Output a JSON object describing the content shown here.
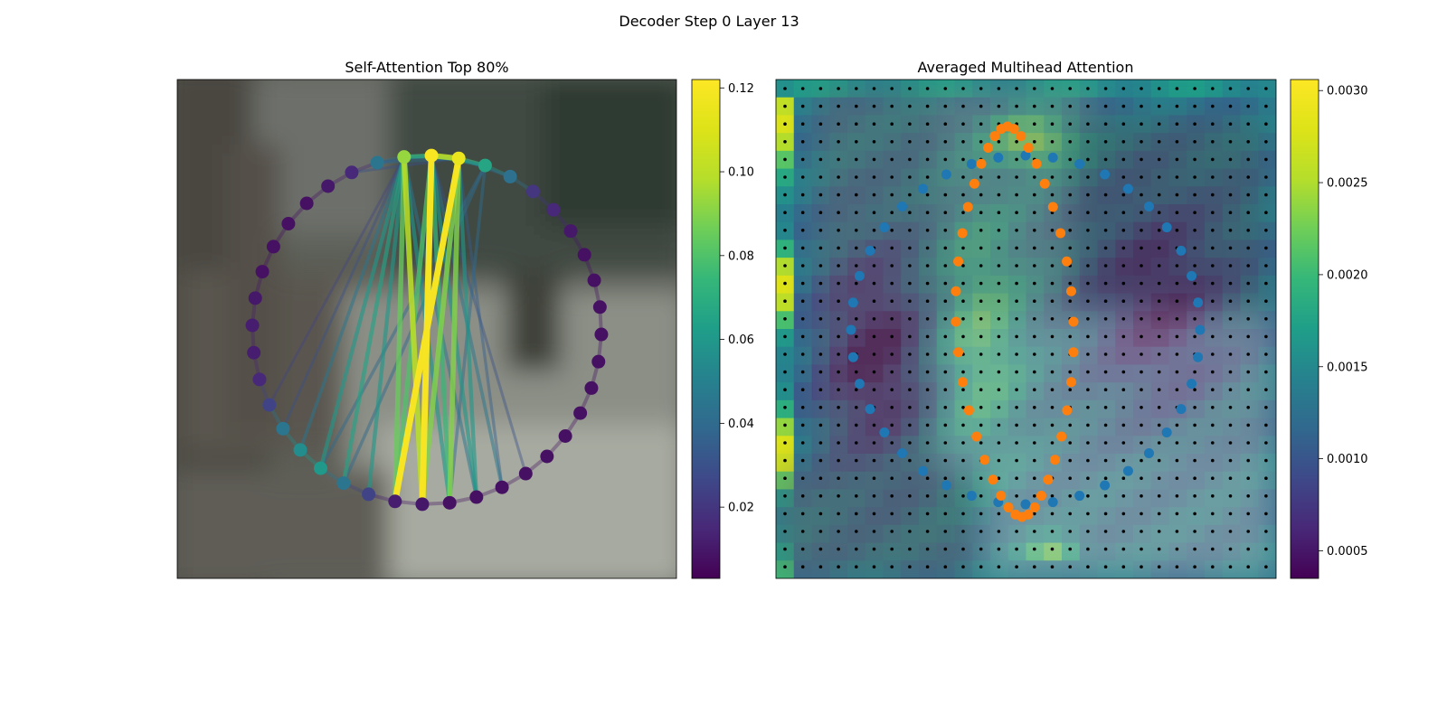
{
  "figure": {
    "suptitle": "Decoder Step 0 Layer 13"
  },
  "chart_data": [
    {
      "type": "network",
      "title": "Self-Attention Top 80%",
      "colormap": "viridis",
      "colorbar": {
        "range": [
          0.003,
          0.122
        ],
        "ticks": [
          0.02,
          0.04,
          0.06,
          0.08,
          0.1,
          0.12
        ],
        "tick_labels": [
          "0.02",
          "0.04",
          "0.06",
          "0.08",
          "0.10",
          "0.12"
        ]
      },
      "node_count": 40,
      "node_values": [
        0.066,
        0.043,
        0.02,
        0.015,
        0.01,
        0.008,
        0.008,
        0.008,
        0.008,
        0.008,
        0.008,
        0.008,
        0.008,
        0.008,
        0.008,
        0.008,
        0.008,
        0.008,
        0.01,
        0.012,
        0.025,
        0.045,
        0.06,
        0.055,
        0.045,
        0.025,
        0.015,
        0.012,
        0.012,
        0.01,
        0.008,
        0.008,
        0.008,
        0.008,
        0.01,
        0.015,
        0.045,
        0.093,
        0.12,
        0.115
      ],
      "edge_sources": [
        0,
        37,
        38,
        39
      ],
      "edges": [
        {
          "from": 38,
          "to": 18,
          "w": 0.12
        },
        {
          "from": 37,
          "to": 18,
          "w": 0.1
        },
        {
          "from": 39,
          "to": 18,
          "w": 0.09
        },
        {
          "from": 39,
          "to": 19,
          "w": 0.12
        },
        {
          "from": 37,
          "to": 19,
          "w": 0.085
        },
        {
          "from": 38,
          "to": 19,
          "w": 0.08
        },
        {
          "from": 39,
          "to": 17,
          "w": 0.09
        },
        {
          "from": 38,
          "to": 17,
          "w": 0.075
        },
        {
          "from": 37,
          "to": 17,
          "w": 0.06
        },
        {
          "from": 0,
          "to": 17,
          "w": 0.04
        },
        {
          "from": 37,
          "to": 20,
          "w": 0.06
        },
        {
          "from": 37,
          "to": 21,
          "w": 0.065
        },
        {
          "from": 0,
          "to": 21,
          "w": 0.04
        },
        {
          "from": 37,
          "to": 22,
          "w": 0.06
        },
        {
          "from": 0,
          "to": 22,
          "w": 0.04
        },
        {
          "from": 37,
          "to": 23,
          "w": 0.045
        },
        {
          "from": 38,
          "to": 16,
          "w": 0.06
        },
        {
          "from": 39,
          "to": 16,
          "w": 0.06
        },
        {
          "from": 37,
          "to": 16,
          "w": 0.045
        },
        {
          "from": 38,
          "to": 15,
          "w": 0.045
        },
        {
          "from": 39,
          "to": 15,
          "w": 0.035
        },
        {
          "from": 38,
          "to": 14,
          "w": 0.03
        },
        {
          "from": 37,
          "to": 24,
          "w": 0.03
        },
        {
          "from": 37,
          "to": 25,
          "w": 0.025
        },
        {
          "from": 39,
          "to": 0,
          "w": 0.06
        },
        {
          "from": 38,
          "to": 0,
          "w": 0.055
        },
        {
          "from": 39,
          "to": 1,
          "w": 0.04
        },
        {
          "from": 38,
          "to": 37,
          "w": 0.07
        },
        {
          "from": 39,
          "to": 38,
          "w": 0.1
        },
        {
          "from": 39,
          "to": 37,
          "w": 0.05
        },
        {
          "from": 39,
          "to": 36,
          "w": 0.04
        },
        {
          "from": 39,
          "to": 35,
          "w": 0.03
        },
        {
          "from": 38,
          "to": 36,
          "w": 0.03
        }
      ]
    },
    {
      "type": "heatmap",
      "title": "Averaged Multihead Attention",
      "colormap": "viridis",
      "colorbar": {
        "range": [
          0.00035,
          0.00306
        ],
        "ticks": [
          0.0005,
          0.001,
          0.0015,
          0.002,
          0.0025,
          0.003
        ],
        "tick_labels": [
          "0.0005",
          "0.0010",
          "0.0015",
          "0.0020",
          "0.0025",
          "0.0030"
        ]
      },
      "grid": [
        28,
        28
      ],
      "overlay_series": [
        {
          "name": "",
          "color": "#1f77b4",
          "points": 40
        },
        {
          "name": "",
          "color": "#ff7f0e",
          "points": 40
        }
      ]
    }
  ]
}
